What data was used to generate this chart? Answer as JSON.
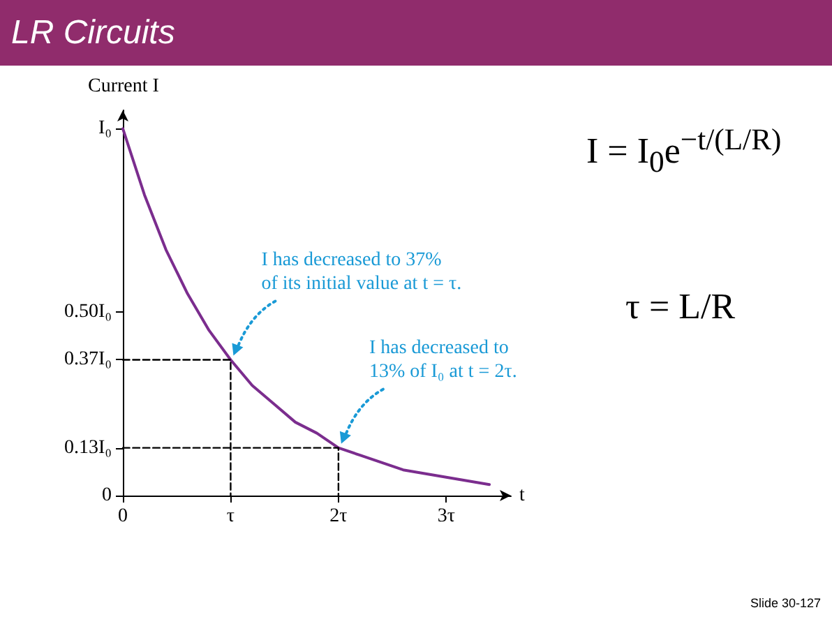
{
  "chart_data": {
    "type": "line",
    "title": "LR Circuits",
    "xlabel": "t",
    "ylabel": "Current I",
    "xlim": [
      0,
      3.6
    ],
    "xticks": [
      0,
      {
        "value": 1,
        "label": "τ"
      },
      {
        "value": 2,
        "label": "2τ"
      },
      {
        "value": 3,
        "label": "3τ"
      }
    ],
    "ylim": [
      0,
      1.05
    ],
    "yticks": [
      0,
      {
        "value": 0.13,
        "label": "0.13I₀"
      },
      {
        "value": 0.37,
        "label": "0.37I₀"
      },
      {
        "value": 0.5,
        "label": "0.50I₀"
      },
      {
        "value": 1,
        "label": "I₀"
      }
    ],
    "grid": false,
    "series": [
      {
        "color": "#7b2d8e",
        "marker": "none",
        "line_style": "solid",
        "x": [
          0,
          0.2,
          0.4,
          0.6,
          0.8,
          1,
          1.2,
          1.4,
          1.6,
          1.8,
          2,
          2.2,
          2.4,
          2.6,
          2.8,
          3,
          3.2,
          3.4
        ],
        "values": [
          1,
          0.82,
          0.67,
          0.55,
          0.45,
          0.37,
          0.3,
          0.25,
          0.2,
          0.17,
          0.13,
          0.11,
          0.09,
          0.07,
          0.06,
          0.05,
          0.04,
          0.03
        ]
      },
      {
        "color": "#000000",
        "marker": "none",
        "line_style": "dashed",
        "x": [
          0,
          1,
          1
        ],
        "values": [
          0.37,
          0.37,
          0
        ]
      },
      {
        "color": "#000000",
        "marker": "none",
        "line_style": "dashed",
        "x": [
          0,
          2,
          2
        ],
        "values": [
          0.13,
          0.13,
          0
        ]
      }
    ],
    "annotations": [
      "I has decreased to 37%\nof its initial value at t = τ.",
      "I has decreased to\n13% of I₀ at t = 2τ.",
      "I = I$_{0}$e$^{−t/(L/R)}$",
      "τ = L/R",
      "Slide 30-127"
    ]
  }
}
